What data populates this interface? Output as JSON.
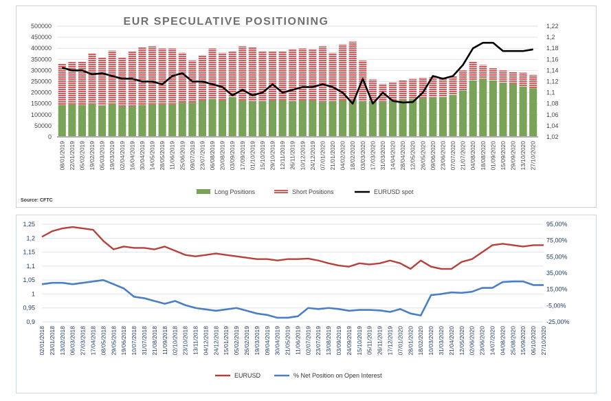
{
  "chart_data": [
    {
      "type": "bar",
      "title": "EUR SPECULATIVE POSITIONING",
      "source": "Source: CFTC",
      "legend": [
        "Long Positions",
        "Short Positions",
        "EURUSD spot"
      ],
      "legend_placement": "bottom",
      "colors": {
        "long": "#7aa35a",
        "short": "#d9585a",
        "spot": "#000000"
      },
      "left_axis": {
        "ylim": [
          0,
          500000
        ],
        "ticks": [
          "0",
          "50000",
          "100000",
          "150000",
          "200000",
          "250000",
          "300000",
          "350000",
          "400000",
          "450000",
          "500000"
        ]
      },
      "right_axis": {
        "ylim": [
          1.02,
          1.22
        ],
        "ticks": [
          "1,02",
          "1,04",
          "1,06",
          "1,08",
          "1,1",
          "1,12",
          "1,14",
          "1,16",
          "1,18",
          "1,2",
          "1,22"
        ]
      },
      "categories": [
        "08/01/2019",
        "22/01/2019",
        "05/02/2019",
        "19/02/2019",
        "05/03/2019",
        "19/03/2019",
        "02/04/2019",
        "16/04/2019",
        "30/04/2019",
        "14/05/2019",
        "28/05/2019",
        "11/06/2019",
        "25/06/2019",
        "09/07/2019",
        "23/07/2019",
        "06/08/2019",
        "20/08/2019",
        "03/09/2019",
        "17/09/2019",
        "01/10/2019",
        "15/10/2019",
        "29/10/2019",
        "12/11/2019",
        "26/11/2019",
        "10/12/2019",
        "24/12/2019",
        "07/01/2020",
        "21/01/2020",
        "04/02/2020",
        "18/02/2020",
        "03/03/2020",
        "17/03/2020",
        "31/03/2020",
        "14/04/2020",
        "28/04/2020",
        "12/05/2020",
        "26/05/2020",
        "09/06/2020",
        "23/06/2020",
        "07/07/2020",
        "21/07/2020",
        "04/08/2020",
        "18/08/2020",
        "01/09/2020",
        "15/09/2020",
        "29/09/2020",
        "13/10/2020",
        "27/10/2020"
      ],
      "series": [
        {
          "name": "Long Positions",
          "values": [
            145000,
            148000,
            145000,
            150000,
            142000,
            150000,
            138000,
            138000,
            145000,
            148000,
            148000,
            148000,
            155000,
            155000,
            165000,
            172000,
            165000,
            180000,
            165000,
            160000,
            160000,
            165000,
            165000,
            160000,
            165000,
            165000,
            158000,
            160000,
            165000,
            165000,
            160000,
            160000,
            158000,
            165000,
            168000,
            172000,
            175000,
            178000,
            180000,
            190000,
            210000,
            255000,
            262000,
            255000,
            245000,
            240000,
            228000,
            220000
          ]
        },
        {
          "name": "Short Positions",
          "values": [
            185000,
            190000,
            195000,
            228000,
            218000,
            240000,
            222000,
            247000,
            260000,
            262000,
            252000,
            252000,
            225000,
            190000,
            205000,
            228000,
            215000,
            205000,
            245000,
            245000,
            225000,
            223000,
            223000,
            235000,
            235000,
            230000,
            252000,
            220000,
            253000,
            265000,
            185000,
            100000,
            82000,
            80000,
            87000,
            90000,
            93000,
            92000,
            88000,
            85000,
            90000,
            85000,
            63000,
            55000,
            55000,
            55000,
            62000,
            60000
          ]
        },
        {
          "name": "EURUSD spot",
          "values": [
            1.145,
            1.14,
            1.14,
            1.133,
            1.135,
            1.13,
            1.125,
            1.125,
            1.12,
            1.12,
            1.115,
            1.13,
            1.135,
            1.12,
            1.12,
            1.115,
            1.11,
            1.095,
            1.105,
            1.095,
            1.1,
            1.115,
            1.1,
            1.105,
            1.11,
            1.11,
            1.115,
            1.11,
            1.1,
            1.08,
            1.125,
            1.08,
            1.1,
            1.085,
            1.082,
            1.083,
            1.1,
            1.13,
            1.125,
            1.13,
            1.15,
            1.18,
            1.19,
            1.19,
            1.175,
            1.175,
            1.175,
            1.178
          ]
        }
      ]
    },
    {
      "type": "line",
      "legend": [
        "EURUSD",
        "% Net Position on Open Interest"
      ],
      "legend_placement": "bottom",
      "colors": {
        "eurusd": "#b8403a",
        "net": "#4a7fc4"
      },
      "left_axis": {
        "ylim": [
          0.9,
          1.25
        ],
        "ticks": [
          "0,9",
          "0,95",
          "1",
          "1,05",
          "1,1",
          "1,15",
          "1,2",
          "1,25"
        ]
      },
      "right_axis": {
        "ylim": [
          -25,
          95
        ],
        "ticks": [
          "-25,00%",
          "-5,00%",
          "15,00%",
          "35,00%",
          "55,00%",
          "75,00%",
          "95,00%"
        ]
      },
      "categories": [
        "02/01/2018",
        "23/01/2018",
        "13/02/2018",
        "06/03/2018",
        "27/03/2018",
        "17/04/2018",
        "08/05/2018",
        "29/05/2018",
        "19/06/2018",
        "10/07/2018",
        "31/07/2018",
        "21/08/2018",
        "11/09/2018",
        "02/10/2018",
        "23/10/2018",
        "13/11/2018",
        "04/12/2018",
        "24/12/2018",
        "15/01/2019",
        "05/02/2019",
        "26/02/2019",
        "19/03/2019",
        "09/04/2019",
        "30/04/2019",
        "21/05/2019",
        "11/06/2019",
        "02/07/2019",
        "23/07/2019",
        "13/08/2019",
        "03/09/2019",
        "24/09/2019",
        "15/10/2019",
        "05/11/2019",
        "26/11/2019",
        "17/12/2019",
        "07/01/2020",
        "28/01/2020",
        "18/02/2020",
        "10/03/2020",
        "31/03/2020",
        "21/04/2020",
        "12/05/2020",
        "02/06/2020",
        "23/06/2020",
        "14/07/2020",
        "04/08/2020",
        "25/08/2020",
        "15/09/2020",
        "06/10/2020",
        "27/10/2020"
      ],
      "series": [
        {
          "name": "EURUSD",
          "axis": "left",
          "values": [
            1.205,
            1.225,
            1.235,
            1.24,
            1.235,
            1.23,
            1.19,
            1.16,
            1.17,
            1.165,
            1.165,
            1.16,
            1.17,
            1.155,
            1.14,
            1.135,
            1.14,
            1.145,
            1.14,
            1.135,
            1.13,
            1.125,
            1.125,
            1.12,
            1.125,
            1.125,
            1.127,
            1.12,
            1.11,
            1.102,
            1.098,
            1.11,
            1.106,
            1.11,
            1.12,
            1.11,
            1.09,
            1.12,
            1.098,
            1.09,
            1.09,
            1.115,
            1.125,
            1.15,
            1.175,
            1.18,
            1.175,
            1.17,
            1.175,
            1.175
          ]
        },
        {
          "name": "% Net Position on Open Interest",
          "axis": "right",
          "values": [
            21.3,
            23.0,
            23.0,
            21.3,
            23.0,
            24.7,
            26.4,
            21.3,
            16.1,
            5.9,
            4.1,
            0.7,
            -2.7,
            0.7,
            -4.4,
            -7.9,
            -9.6,
            -11.3,
            -9.6,
            -7.9,
            -11.3,
            -14.7,
            -16.4,
            -19.9,
            -19.9,
            -18.1,
            -7.9,
            -9.2,
            -7.9,
            -9.2,
            -11.3,
            -10.3,
            -10.3,
            -10.9,
            -12.7,
            -9.2,
            -14.7,
            -17.1,
            7.9,
            9.3,
            11.3,
            10.7,
            12.0,
            16.8,
            16.8,
            24.0,
            24.7,
            24.7,
            20.3,
            20.3
          ]
        }
      ]
    }
  ]
}
